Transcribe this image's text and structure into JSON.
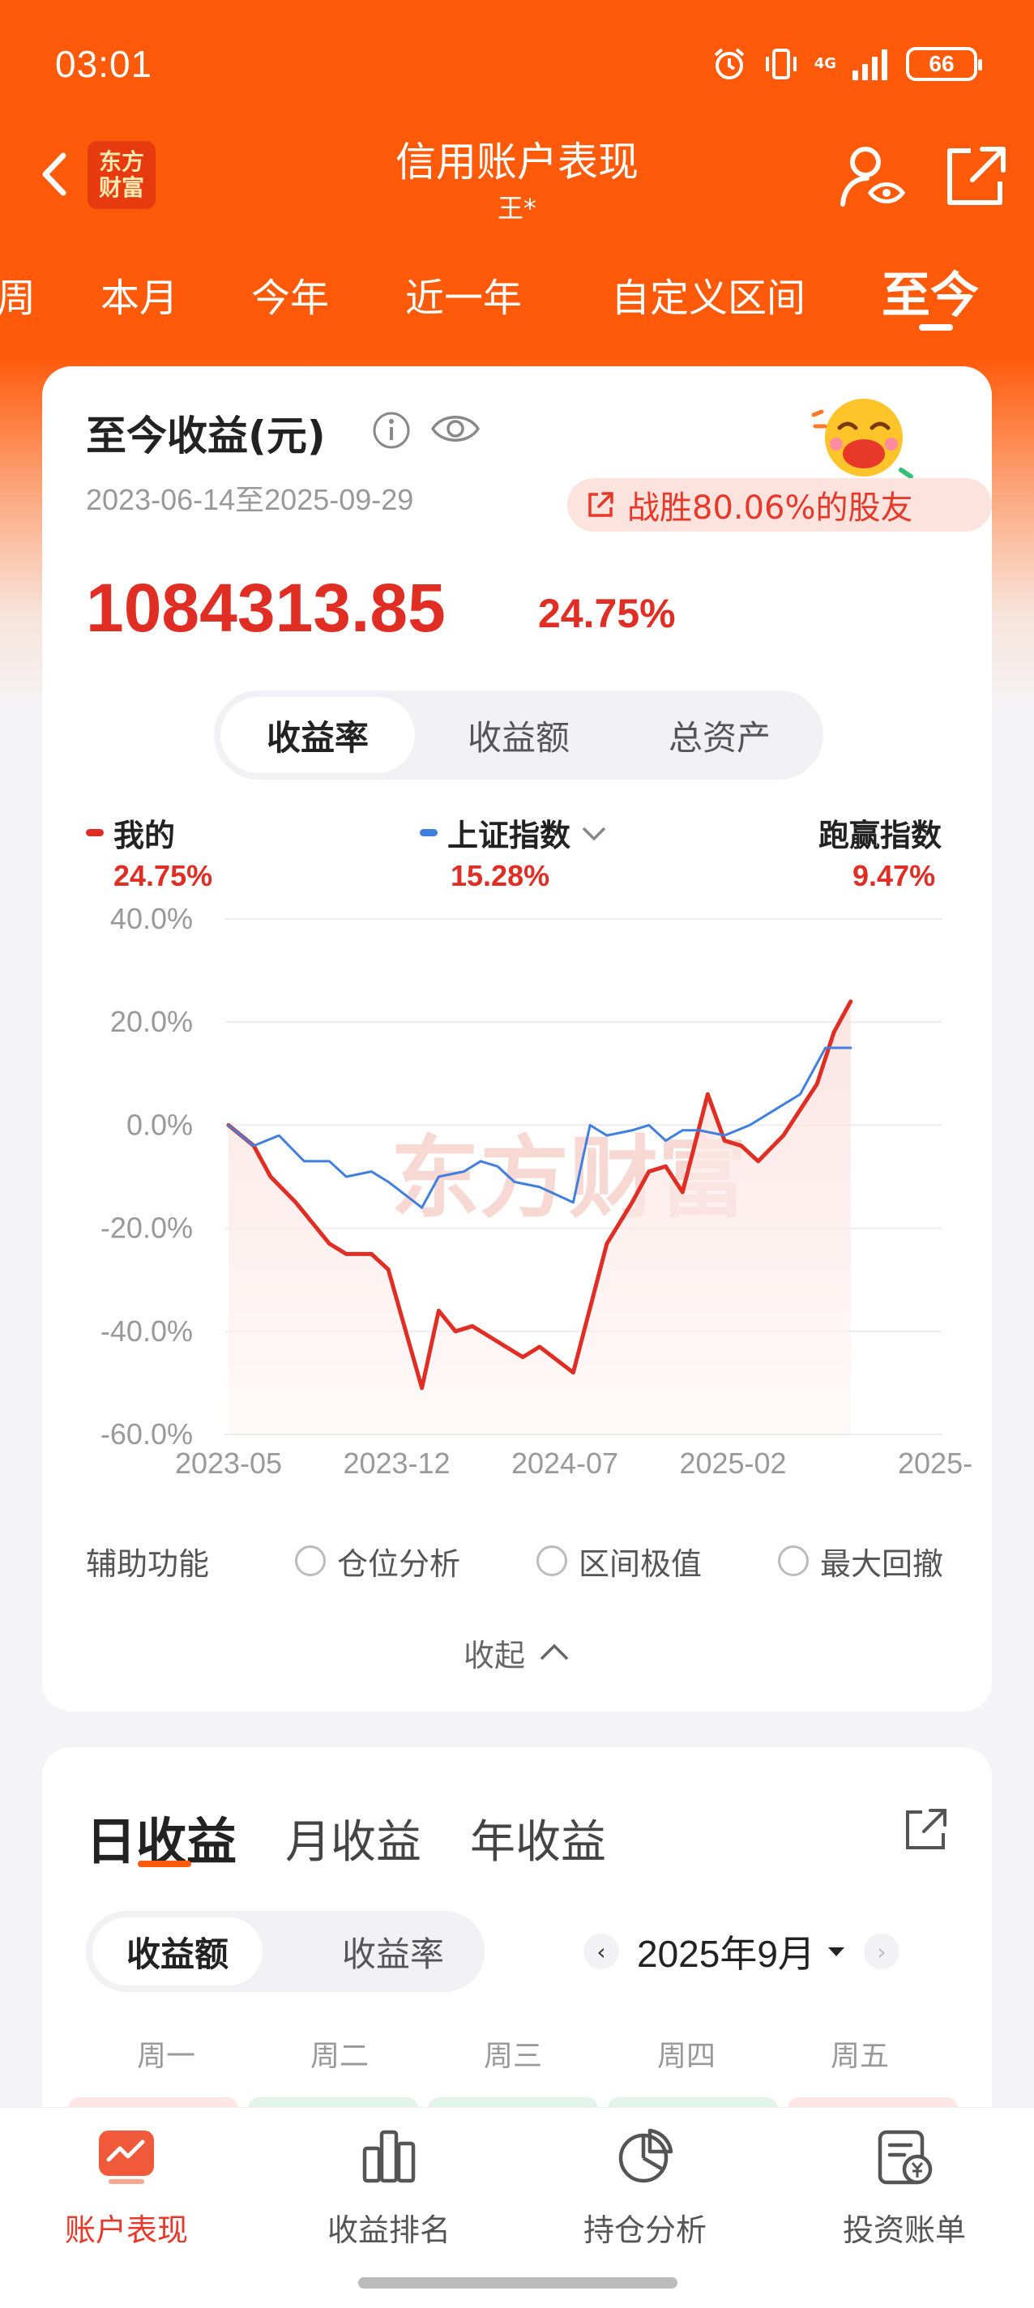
{
  "status_bar": {
    "time": "03:01",
    "network": "4G",
    "battery": "66"
  },
  "nav": {
    "title": "信用账户表现",
    "subtitle": "王*",
    "logo_text": "东方财富"
  },
  "period_tabs": [
    {
      "label": "周",
      "active": false
    },
    {
      "label": "本月",
      "active": false
    },
    {
      "label": "今年",
      "active": false
    },
    {
      "label": "近一年",
      "active": false
    },
    {
      "label": "自定义区间",
      "active": false
    },
    {
      "label": "至今",
      "active": true
    }
  ],
  "summary": {
    "title": "至今收益(元)",
    "date_range": "2023-06-14至2025-09-29",
    "beat_text": "战胜80.06%的股友",
    "amount": "1084313.85",
    "return_pct": "24.75%"
  },
  "metric_tabs": [
    {
      "label": "收益率",
      "active": true
    },
    {
      "label": "收益额",
      "active": false
    },
    {
      "label": "总资产",
      "active": false
    }
  ],
  "legend": {
    "mine_label": "我的",
    "mine_value": "24.75%",
    "index_label": "上证指数",
    "index_value": "15.28%",
    "beat_label": "跑赢指数",
    "beat_value": "9.47%"
  },
  "chart_data": {
    "type": "line",
    "xlabel": "",
    "ylabel": "",
    "ylim": [
      -60,
      40
    ],
    "y_ticks": [
      "40.0%",
      "20.0%",
      "0.0%",
      "-20.0%",
      "-40.0%",
      "-60.0%"
    ],
    "y_tick_values": [
      40,
      20,
      0,
      -20,
      -40,
      -60
    ],
    "x_ticks": [
      "2023-05",
      "2023-12",
      "2024-07",
      "2025-02",
      "2025-"
    ],
    "x_index_range": [
      0,
      40
    ],
    "x_tick_index": [
      0,
      10,
      20,
      30,
      40
    ],
    "grid": true,
    "watermark": "东方财富",
    "series": [
      {
        "name": "我的",
        "color": "#e02e24",
        "values": [
          0,
          -4,
          -10,
          -15,
          -23,
          -25,
          -25,
          -28,
          -51,
          -36,
          -40,
          -39,
          -41,
          -43,
          -45,
          -43,
          -48,
          -23,
          -15,
          -9,
          -8,
          -13,
          6,
          -3,
          -4,
          -7,
          -2,
          8,
          18,
          24
        ]
      },
      {
        "name": "上证指数",
        "color": "#3f7fe0",
        "values": [
          0,
          -4,
          -2,
          -7,
          -7,
          -10,
          -9,
          -11,
          -16,
          -10,
          -9,
          -7,
          -8,
          -11,
          -12,
          -15,
          0,
          -2,
          -1,
          0,
          -3,
          -1,
          -1,
          -2,
          0,
          3,
          6,
          15,
          15
        ]
      }
    ],
    "series_x": [
      [
        0,
        1.5,
        2.5,
        4,
        6,
        7,
        8.5,
        9.5,
        11.5,
        12.5,
        13.5,
        14.5,
        15.5,
        16.5,
        17.5,
        18.5,
        20.5,
        22.5,
        24,
        25,
        26,
        27,
        28.5,
        29.5,
        30.5,
        31.5,
        33,
        35,
        36,
        37
      ]
    ],
    "series_x_index": [
      [
        0,
        1.5,
        2.5,
        4,
        6,
        7,
        8.5,
        9.5,
        11.5,
        12.5,
        13.5,
        14.5,
        15.5,
        16.5,
        17.5,
        18.5,
        20.5,
        22.5,
        24,
        25,
        26,
        27,
        28.5,
        29.5,
        30.5,
        31.5,
        33,
        35,
        36,
        37
      ],
      [
        0,
        1.5,
        3,
        4.5,
        6,
        7,
        8.5,
        9.5,
        11.5,
        12.5,
        14,
        15,
        16,
        17,
        18.5,
        20.5,
        21.5,
        22.5,
        24,
        25,
        26,
        27,
        28,
        29.5,
        31,
        32.5,
        34,
        35.5,
        37
      ]
    ]
  },
  "aux": {
    "label": "辅助功能",
    "options": [
      "仓位分析",
      "区间极值",
      "最大回撤"
    ],
    "collapse_label": "收起"
  },
  "daily": {
    "tabs": [
      {
        "label": "日收益",
        "active": true
      },
      {
        "label": "月收益",
        "active": false
      },
      {
        "label": "年收益",
        "active": false
      }
    ],
    "metric_tabs": [
      {
        "label": "收益额",
        "active": true
      },
      {
        "label": "收益率",
        "active": false
      }
    ],
    "month": "2025年9月",
    "weekdays": [
      "周一",
      "周二",
      "周三",
      "周四",
      "周五"
    ],
    "cell_colors": [
      "#fde6e4",
      "#e3f4ea",
      "#e3f4ea",
      "#e3f4ea",
      "#fde6e4"
    ]
  },
  "tabbar": [
    {
      "label": "账户表现",
      "icon": "account-performance-icon",
      "active": true
    },
    {
      "label": "收益排名",
      "icon": "bar-chart-icon",
      "active": false
    },
    {
      "label": "持仓分析",
      "icon": "pie-chart-icon",
      "active": false
    },
    {
      "label": "投资账单",
      "icon": "bill-icon",
      "active": false
    }
  ],
  "colors": {
    "brand": "#ff5a0a",
    "up": "#e02e24",
    "index": "#3f7fe0",
    "down_cell": "#e3f4ea"
  }
}
